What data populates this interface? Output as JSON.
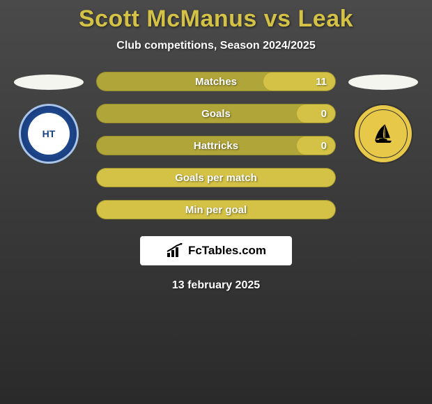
{
  "title": "Scott McManus vs Leak",
  "subtitle": "Club competitions, Season 2024/2025",
  "stats": [
    {
      "label": "Matches",
      "value_right": "11",
      "fill_pct": 30
    },
    {
      "label": "Goals",
      "value_right": "0",
      "fill_pct": 16
    },
    {
      "label": "Hattricks",
      "value_right": "0",
      "fill_pct": 16
    },
    {
      "label": "Goals per match",
      "value_right": "",
      "fill_pct": 100
    },
    {
      "label": "Min per goal",
      "value_right": "",
      "fill_pct": 100
    }
  ],
  "crest_left": {
    "name": "halifax-town-crest",
    "inner_text": "HT",
    "bg_outer": "#1a3f80",
    "border": "#a8c4e8"
  },
  "crest_right": {
    "name": "boston-united-crest",
    "bg": "#e8c848"
  },
  "logo": {
    "text": "FcTables.com"
  },
  "date": "13 february 2025",
  "colors": {
    "title": "#d4c246",
    "bar_fill": "#d4c246",
    "bar_bg": "#b0a538",
    "oval": "#f5f5f0"
  }
}
